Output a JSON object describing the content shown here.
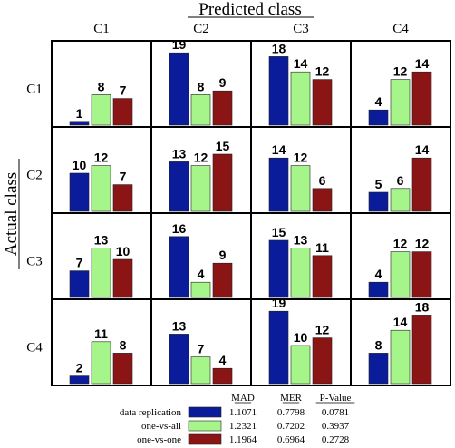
{
  "chart_data": {
    "type": "bar",
    "title": "Predicted class",
    "xlabel": "Predicted class",
    "ylabel": "Actual class",
    "predicted_classes": [
      "C1",
      "C2",
      "C3",
      "C4"
    ],
    "actual_classes": [
      "C1",
      "C2",
      "C3",
      "C4"
    ],
    "ylim": [
      0,
      20
    ],
    "series": [
      {
        "name": "data replication",
        "color": "#0a1c9a"
      },
      {
        "name": "one-vs-all",
        "color": "#a6f58a"
      },
      {
        "name": "one-vs-one",
        "color": "#8b1414"
      }
    ],
    "cells": [
      [
        [
          1,
          8,
          7
        ],
        [
          19,
          8,
          9
        ],
        [
          18,
          14,
          12
        ],
        [
          4,
          12,
          14
        ]
      ],
      [
        [
          10,
          12,
          7
        ],
        [
          13,
          12,
          15
        ],
        [
          14,
          12,
          6
        ],
        [
          5,
          6,
          14
        ]
      ],
      [
        [
          7,
          13,
          10
        ],
        [
          16,
          4,
          9
        ],
        [
          15,
          13,
          11
        ],
        [
          4,
          12,
          12
        ]
      ],
      [
        [
          2,
          11,
          8
        ],
        [
          13,
          7,
          4
        ],
        [
          19,
          10,
          12
        ],
        [
          8,
          14,
          18
        ]
      ]
    ],
    "legend": {
      "headers": [
        "MAD",
        "MER",
        "P-Value"
      ],
      "rows": [
        {
          "name": "data replication",
          "values": [
            "1.1071",
            "0.7798",
            "0.0781"
          ]
        },
        {
          "name": "one-vs-all",
          "values": [
            "1.2321",
            "0.7202",
            "0.3937"
          ]
        },
        {
          "name": "one-vs-one",
          "values": [
            "1.1964",
            "0.6964",
            "0.2728"
          ]
        }
      ]
    }
  }
}
